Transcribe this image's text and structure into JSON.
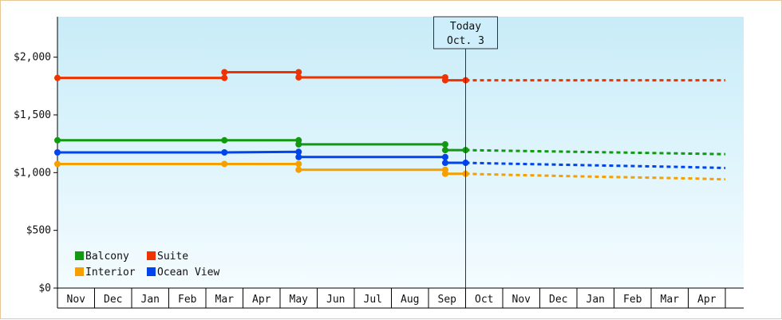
{
  "chart_data": {
    "type": "line",
    "title": "",
    "xlabel": "",
    "ylabel": "",
    "ylim": [
      0,
      2350
    ],
    "y_ticks": [
      0,
      500,
      1000,
      1500,
      2000
    ],
    "y_tick_labels": [
      "$0",
      "$500",
      "$1,000",
      "$1,500",
      "$2,000"
    ],
    "months": [
      "Nov",
      "Dec",
      "Jan",
      "Feb",
      "Mar",
      "Apr",
      "May",
      "Jun",
      "Jul",
      "Aug",
      "Sep",
      "Oct",
      "Nov",
      "Dec",
      "Jan",
      "Feb",
      "Mar",
      "Apr"
    ],
    "today": {
      "line1": "Today",
      "line2": "Oct. 3",
      "x": 11.0
    },
    "legend_placement": "bottom-left",
    "background": {
      "top": "#c8ecf8",
      "bottom": "#f4fcff"
    },
    "series": [
      {
        "name": "Suite",
        "color": "#ee3300",
        "points": [
          [
            0,
            1820
          ],
          [
            4.5,
            1820
          ],
          [
            4.5,
            1870
          ],
          [
            6.5,
            1870
          ],
          [
            6.5,
            1825
          ],
          [
            10.45,
            1825
          ],
          [
            10.45,
            1800
          ],
          [
            11.0,
            1800
          ]
        ],
        "markers": [
          [
            0,
            1820
          ],
          [
            4.5,
            1820
          ],
          [
            4.5,
            1870
          ],
          [
            6.5,
            1870
          ],
          [
            6.5,
            1825
          ],
          [
            10.45,
            1825
          ],
          [
            10.45,
            1800
          ],
          [
            11.0,
            1800
          ]
        ],
        "projection": [
          [
            11.0,
            1800
          ],
          [
            18.0,
            1800
          ]
        ]
      },
      {
        "name": "Balcony",
        "color": "#119911",
        "points": [
          [
            0,
            1280
          ],
          [
            4.5,
            1280
          ],
          [
            6.5,
            1280
          ],
          [
            6.5,
            1245
          ],
          [
            10.45,
            1245
          ],
          [
            10.45,
            1195
          ],
          [
            11.0,
            1195
          ]
        ],
        "markers": [
          [
            0,
            1280
          ],
          [
            4.5,
            1280
          ],
          [
            6.5,
            1280
          ],
          [
            6.5,
            1245
          ],
          [
            10.45,
            1245
          ],
          [
            10.45,
            1195
          ],
          [
            11.0,
            1195
          ]
        ],
        "projection": [
          [
            11.0,
            1195
          ],
          [
            12.0,
            1190
          ],
          [
            13.0,
            1185
          ],
          [
            14.0,
            1180
          ],
          [
            15.0,
            1175
          ],
          [
            16.0,
            1170
          ],
          [
            17.0,
            1165
          ],
          [
            18.0,
            1160
          ]
        ]
      },
      {
        "name": "Ocean View",
        "color": "#0044ee",
        "points": [
          [
            0,
            1175
          ],
          [
            4.5,
            1175
          ],
          [
            6.5,
            1180
          ],
          [
            6.5,
            1135
          ],
          [
            10.45,
            1135
          ],
          [
            10.45,
            1085
          ],
          [
            11.0,
            1085
          ]
        ],
        "markers": [
          [
            0,
            1175
          ],
          [
            4.5,
            1175
          ],
          [
            6.5,
            1180
          ],
          [
            6.5,
            1135
          ],
          [
            10.45,
            1135
          ],
          [
            10.45,
            1085
          ],
          [
            11.0,
            1085
          ]
        ],
        "projection": [
          [
            11.0,
            1085
          ],
          [
            12.0,
            1078
          ],
          [
            13.0,
            1072
          ],
          [
            14.0,
            1066
          ],
          [
            15.0,
            1060
          ],
          [
            16.0,
            1054
          ],
          [
            17.0,
            1048
          ],
          [
            18.0,
            1040
          ]
        ]
      },
      {
        "name": "Interior",
        "color": "#f5a000",
        "points": [
          [
            0,
            1075
          ],
          [
            4.5,
            1075
          ],
          [
            6.5,
            1075
          ],
          [
            6.5,
            1025
          ],
          [
            10.45,
            1025
          ],
          [
            10.45,
            990
          ],
          [
            11.0,
            990
          ]
        ],
        "markers": [
          [
            0,
            1075
          ],
          [
            4.5,
            1075
          ],
          [
            6.5,
            1075
          ],
          [
            6.5,
            1025
          ],
          [
            10.45,
            1025
          ],
          [
            10.45,
            990
          ],
          [
            11.0,
            990
          ]
        ],
        "projection": [
          [
            11.0,
            990
          ],
          [
            12.0,
            982
          ],
          [
            13.0,
            975
          ],
          [
            14.0,
            968
          ],
          [
            15.0,
            962
          ],
          [
            16.0,
            956
          ],
          [
            17.0,
            950
          ],
          [
            18.0,
            942
          ]
        ]
      }
    ],
    "legend": [
      {
        "name": "Balcony",
        "color": "#119911"
      },
      {
        "name": "Suite",
        "color": "#ee3300"
      },
      {
        "name": "Interior",
        "color": "#f5a000"
      },
      {
        "name": "Ocean View",
        "color": "#0044ee"
      }
    ]
  }
}
